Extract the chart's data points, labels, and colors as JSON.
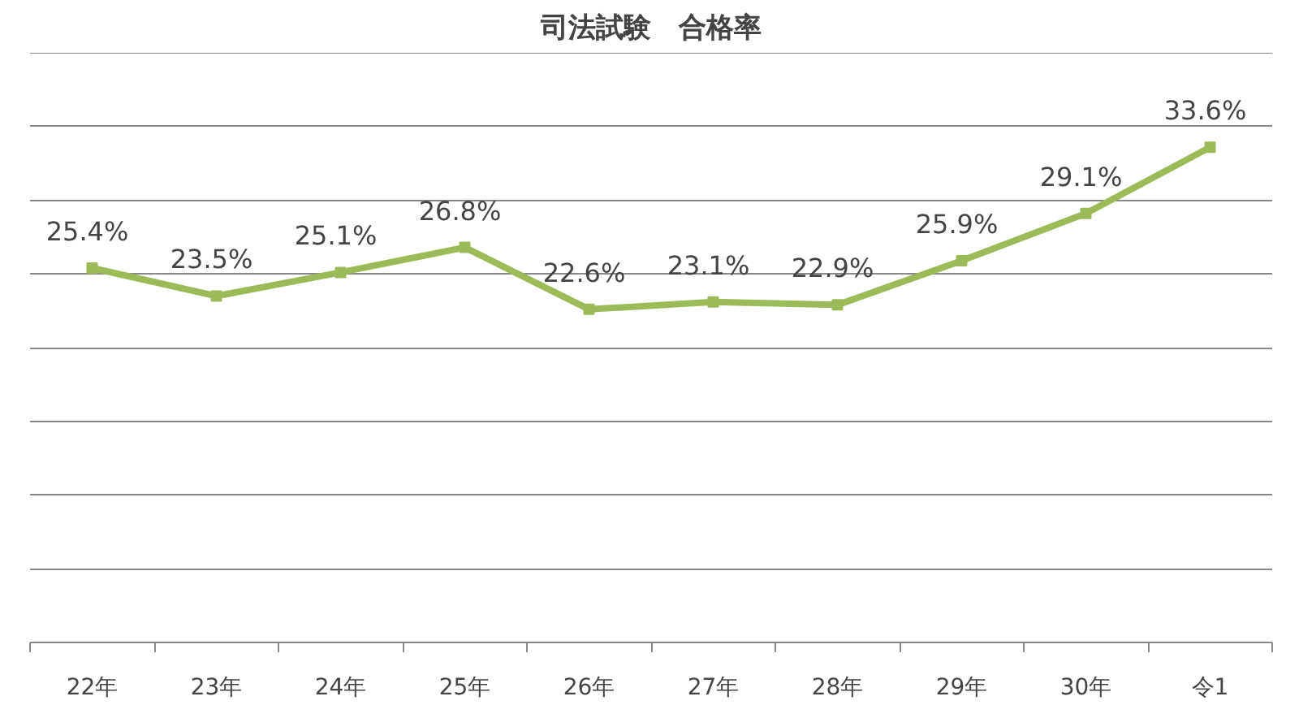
{
  "chart_data": {
    "type": "line",
    "title": "司法試験　合格率",
    "categories": [
      "22年",
      "23年",
      "24年",
      "25年",
      "26年",
      "27年",
      "28年",
      "29年",
      "30年",
      "令1"
    ],
    "series": [
      {
        "color": "#9bbb59",
        "values": [
          25.4,
          23.5,
          25.1,
          26.8,
          22.6,
          23.1,
          22.9,
          25.9,
          29.1,
          33.6
        ],
        "value_labels": [
          "25.4%",
          "23.5%",
          "25.1%",
          "26.8%",
          "22.6%",
          "23.1%",
          "22.9%",
          "25.9%",
          "29.1%",
          "33.6%"
        ]
      }
    ],
    "ylim": [
      0,
      40
    ],
    "yticks": [
      {
        "value": 0,
        "label": null
      },
      {
        "value": 5,
        "label": null
      },
      {
        "value": 10,
        "label": null
      },
      {
        "value": 15,
        "label": null
      },
      {
        "value": 20,
        "label": null
      },
      {
        "value": 25,
        "label": null
      },
      {
        "value": 30,
        "label": null
      },
      {
        "value": 35,
        "label": null
      },
      {
        "value": 40,
        "label": null
      }
    ],
    "tick_labels": "x",
    "grid": "y",
    "marker": "square",
    "line_style": "solid"
  }
}
